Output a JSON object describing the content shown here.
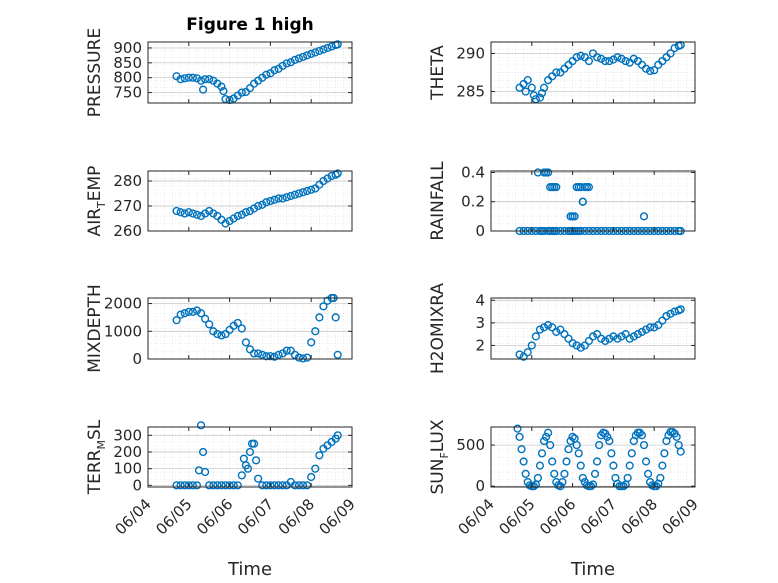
{
  "colors": {
    "marker": "#0072BD",
    "axis": "#262626",
    "grid": "#d9d9d9"
  },
  "chart_data": [
    {
      "type": "scatter",
      "title": "Figure 1 high",
      "ylabel": "PRESSURE",
      "ylabel_sub": "",
      "xlim": [
        0,
        5
      ],
      "ylim": [
        715,
        920
      ],
      "yticks": [
        750,
        800,
        850,
        900
      ],
      "yticklabels": [
        "750",
        "800",
        "850",
        "900"
      ],
      "x": [
        0.7,
        0.8,
        0.9,
        1.0,
        1.1,
        1.2,
        1.3,
        1.35,
        1.4,
        1.5,
        1.6,
        1.7,
        1.8,
        1.85,
        1.9,
        2.0,
        2.1,
        2.2,
        2.3,
        2.4,
        2.5,
        2.6,
        2.7,
        2.8,
        2.9,
        3.0,
        3.1,
        3.2,
        3.3,
        3.4,
        3.5,
        3.6,
        3.7,
        3.8,
        3.9,
        4.0,
        4.1,
        4.2,
        4.3,
        4.4,
        4.5,
        4.6,
        4.65
      ],
      "y": [
        805,
        795,
        798,
        800,
        800,
        798,
        790,
        760,
        795,
        795,
        790,
        780,
        770,
        755,
        728,
        725,
        730,
        740,
        750,
        752,
        765,
        780,
        790,
        800,
        810,
        815,
        825,
        830,
        840,
        848,
        852,
        860,
        865,
        870,
        875,
        880,
        885,
        890,
        895,
        900,
        905,
        910,
        912
      ]
    },
    {
      "type": "scatter",
      "title": "",
      "ylabel": "THETA",
      "ylabel_sub": "",
      "xlim": [
        0,
        5
      ],
      "ylim": [
        283.5,
        291.5
      ],
      "yticks": [
        285,
        290
      ],
      "yticklabels": [
        "285",
        "290"
      ],
      "x": [
        0.7,
        0.8,
        0.85,
        0.9,
        1.0,
        1.05,
        1.1,
        1.2,
        1.25,
        1.3,
        1.4,
        1.5,
        1.6,
        1.7,
        1.8,
        1.9,
        2.0,
        2.1,
        2.2,
        2.3,
        2.4,
        2.5,
        2.6,
        2.7,
        2.8,
        2.9,
        3.0,
        3.1,
        3.2,
        3.3,
        3.4,
        3.5,
        3.6,
        3.7,
        3.8,
        3.9,
        4.0,
        4.1,
        4.2,
        4.3,
        4.4,
        4.5,
        4.6,
        4.65
      ],
      "y": [
        285.5,
        286,
        285,
        286.5,
        285.5,
        284.5,
        284,
        284.2,
        284.8,
        285.5,
        286.5,
        287,
        287.5,
        287.5,
        288,
        288.5,
        289,
        289.5,
        289.7,
        289.5,
        289,
        290,
        289.5,
        289.3,
        289,
        289,
        289.2,
        289.5,
        289.3,
        289,
        288.8,
        289.3,
        289,
        288.5,
        288,
        287.7,
        287.8,
        288.5,
        289,
        289.5,
        290,
        290.7,
        291,
        291.1
      ]
    },
    {
      "type": "scatter",
      "title": "",
      "ylabel": "AIR",
      "ylabel_sub": "T",
      "ylabel_suffix": "EMP",
      "xlim": [
        0,
        5
      ],
      "ylim": [
        260,
        284
      ],
      "yticks": [
        260,
        270,
        280
      ],
      "yticklabels": [
        "260",
        "270",
        "280"
      ],
      "x": [
        0.7,
        0.8,
        0.9,
        1.0,
        1.1,
        1.2,
        1.3,
        1.4,
        1.5,
        1.6,
        1.7,
        1.8,
        1.9,
        2.0,
        2.1,
        2.2,
        2.3,
        2.4,
        2.5,
        2.6,
        2.7,
        2.8,
        2.9,
        3.0,
        3.1,
        3.2,
        3.3,
        3.4,
        3.5,
        3.6,
        3.7,
        3.8,
        3.9,
        4.0,
        4.1,
        4.2,
        4.3,
        4.4,
        4.5,
        4.6,
        4.65
      ],
      "y": [
        268,
        267.5,
        267,
        267.5,
        267,
        266.5,
        266,
        267,
        268,
        267,
        266,
        264.5,
        263,
        264,
        265,
        266,
        266.5,
        267.5,
        268,
        269,
        270,
        270.5,
        271.5,
        272,
        272.5,
        273,
        273,
        273.5,
        274,
        274.5,
        275,
        275.5,
        276,
        276.5,
        277,
        278.5,
        280,
        281,
        282,
        282.5,
        283
      ]
    },
    {
      "type": "scatter",
      "title": "",
      "ylabel": "RAINFALL",
      "ylabel_sub": "",
      "xlim": [
        0,
        5
      ],
      "ylim": [
        0,
        0.41
      ],
      "yticks": [
        0,
        0.2,
        0.4
      ],
      "yticklabels": [
        "0",
        "0.2",
        "0.4"
      ],
      "x": [
        0.7,
        0.8,
        0.9,
        1.0,
        1.1,
        1.2,
        1.25,
        1.3,
        1.4,
        1.45,
        1.5,
        1.55,
        1.6,
        1.7,
        1.8,
        1.9,
        1.95,
        2.0,
        2.05,
        2.1,
        2.15,
        2.2,
        2.3,
        2.4,
        2.5,
        2.6,
        2.7,
        2.8,
        2.9,
        3.0,
        3.1,
        3.2,
        3.3,
        3.4,
        3.5,
        3.6,
        3.7,
        3.8,
        3.9,
        4.0,
        4.1,
        4.2,
        4.3,
        4.4,
        4.5,
        4.6,
        4.65,
        1.15,
        1.3,
        1.35,
        1.4,
        1.45,
        1.5,
        1.55,
        1.6,
        1.95,
        2.0,
        2.05,
        2.1,
        2.15,
        2.2,
        2.25,
        2.25,
        2.3,
        2.35,
        2.4,
        3.75
      ],
      "y": [
        0,
        0,
        0,
        0,
        0,
        0,
        0,
        0,
        0,
        0,
        0,
        0,
        0,
        0,
        0,
        0,
        0,
        0,
        0,
        0,
        0,
        0,
        0,
        0,
        0,
        0,
        0,
        0,
        0,
        0,
        0,
        0,
        0,
        0,
        0,
        0,
        0,
        0,
        0,
        0,
        0,
        0,
        0,
        0,
        0,
        0,
        0,
        0.4,
        0.4,
        0.4,
        0.4,
        0.3,
        0.3,
        0.3,
        0.3,
        0.1,
        0.1,
        0.1,
        0.3,
        0.3,
        0.3,
        0.2,
        0.2,
        0.3,
        0.3,
        0.3,
        0.1
      ]
    },
    {
      "type": "scatter",
      "title": "",
      "ylabel": "MIXDEPTH",
      "ylabel_sub": "",
      "xlim": [
        0,
        5
      ],
      "ylim": [
        0,
        2200
      ],
      "yticks": [
        0,
        1000,
        2000
      ],
      "yticklabels": [
        "0",
        "1000",
        "2000"
      ],
      "x": [
        0.7,
        0.8,
        0.9,
        1.0,
        1.1,
        1.2,
        1.3,
        1.4,
        1.5,
        1.6,
        1.7,
        1.8,
        1.9,
        2.0,
        2.1,
        2.2,
        2.3,
        2.4,
        2.5,
        2.6,
        2.7,
        2.8,
        2.9,
        3.0,
        3.1,
        3.2,
        3.3,
        3.4,
        3.5,
        3.6,
        3.7,
        3.8,
        3.9,
        4.0,
        4.1,
        4.2,
        4.3,
        4.4,
        4.5,
        4.55,
        4.6,
        4.65
      ],
      "y": [
        1400,
        1600,
        1650,
        1700,
        1700,
        1750,
        1650,
        1450,
        1250,
        1000,
        900,
        850,
        900,
        1050,
        1200,
        1300,
        1100,
        600,
        350,
        200,
        200,
        150,
        100,
        100,
        80,
        150,
        200,
        300,
        300,
        150,
        50,
        20,
        50,
        600,
        1000,
        1500,
        1900,
        2100,
        2200,
        2200,
        1500,
        150
      ]
    },
    {
      "type": "scatter",
      "title": "",
      "ylabel": "H2OMIXRA",
      "ylabel_sub": "",
      "xlim": [
        0,
        5
      ],
      "ylim": [
        1.4,
        4.1
      ],
      "yticks": [
        2,
        3,
        4
      ],
      "yticklabels": [
        "2",
        "3",
        "4"
      ],
      "x": [
        0.7,
        0.8,
        0.9,
        1.0,
        1.1,
        1.2,
        1.3,
        1.4,
        1.5,
        1.6,
        1.7,
        1.8,
        1.9,
        2.0,
        2.1,
        2.2,
        2.3,
        2.4,
        2.5,
        2.6,
        2.7,
        2.8,
        2.9,
        3.0,
        3.1,
        3.2,
        3.3,
        3.4,
        3.5,
        3.6,
        3.7,
        3.8,
        3.9,
        4.0,
        4.1,
        4.2,
        4.3,
        4.4,
        4.5,
        4.6,
        4.65
      ],
      "y": [
        1.6,
        1.5,
        1.7,
        2.0,
        2.4,
        2.7,
        2.8,
        2.9,
        2.8,
        2.6,
        2.7,
        2.5,
        2.3,
        2.1,
        2.0,
        1.9,
        2.0,
        2.2,
        2.4,
        2.5,
        2.3,
        2.2,
        2.3,
        2.4,
        2.3,
        2.4,
        2.5,
        2.3,
        2.4,
        2.5,
        2.6,
        2.7,
        2.8,
        2.8,
        2.9,
        3.1,
        3.3,
        3.4,
        3.5,
        3.55,
        3.6
      ]
    },
    {
      "type": "scatter",
      "title": "",
      "ylabel": "TERR",
      "ylabel_sub": "M",
      "ylabel_suffix": "SL",
      "xlim": [
        0,
        5
      ],
      "ylim": [
        -10,
        350
      ],
      "yticks": [
        0,
        100,
        200,
        300
      ],
      "yticklabels": [
        "0",
        "100",
        "200",
        "300"
      ],
      "x": [
        0.7,
        0.8,
        0.9,
        1.0,
        1.1,
        1.2,
        1.25,
        1.3,
        1.35,
        1.4,
        1.5,
        1.6,
        1.7,
        1.8,
        1.9,
        2.0,
        2.1,
        2.2,
        2.3,
        2.35,
        2.4,
        2.45,
        2.5,
        2.55,
        2.6,
        2.65,
        2.7,
        2.8,
        2.9,
        3.0,
        3.1,
        3.2,
        3.3,
        3.4,
        3.5,
        3.6,
        3.7,
        3.8,
        3.9,
        4.0,
        4.1,
        4.2,
        4.3,
        4.4,
        4.5,
        4.6,
        4.65
      ],
      "y": [
        0,
        0,
        0,
        0,
        0,
        0,
        90,
        360,
        200,
        80,
        0,
        0,
        0,
        0,
        0,
        0,
        0,
        0,
        60,
        160,
        120,
        100,
        200,
        250,
        250,
        150,
        40,
        0,
        0,
        0,
        0,
        0,
        0,
        0,
        20,
        0,
        0,
        0,
        0,
        50,
        100,
        180,
        220,
        240,
        260,
        280,
        300
      ]
    },
    {
      "type": "scatter",
      "title": "",
      "ylabel": "SUN",
      "ylabel_sub": "F",
      "ylabel_suffix": "LUX",
      "xlim": [
        0,
        5
      ],
      "ylim": [
        -10,
        720
      ],
      "yticks": [
        0,
        500
      ],
      "yticklabels": [
        "0",
        "500"
      ],
      "x": [
        0.65,
        0.7,
        0.75,
        0.8,
        0.85,
        0.9,
        0.95,
        1.0,
        1.05,
        1.1,
        1.15,
        1.2,
        1.25,
        1.3,
        1.35,
        1.4,
        1.45,
        1.5,
        1.55,
        1.6,
        1.65,
        1.7,
        1.75,
        1.8,
        1.85,
        1.9,
        1.95,
        2.0,
        2.05,
        2.1,
        2.15,
        2.2,
        2.25,
        2.3,
        2.35,
        2.4,
        2.45,
        2.5,
        2.55,
        2.6,
        2.65,
        2.7,
        2.75,
        2.8,
        2.85,
        2.9,
        2.95,
        3.0,
        3.05,
        3.1,
        3.15,
        3.2,
        3.25,
        3.3,
        3.35,
        3.4,
        3.45,
        3.5,
        3.55,
        3.6,
        3.65,
        3.7,
        3.75,
        3.8,
        3.85,
        3.9,
        3.95,
        4.0,
        4.05,
        4.1,
        4.15,
        4.2,
        4.25,
        4.3,
        4.35,
        4.4,
        4.45,
        4.5,
        4.55,
        4.6,
        4.65
      ],
      "y": [
        700,
        600,
        450,
        300,
        150,
        50,
        10,
        0,
        0,
        20,
        100,
        250,
        400,
        550,
        600,
        650,
        500,
        300,
        150,
        50,
        10,
        0,
        50,
        150,
        300,
        450,
        550,
        600,
        580,
        500,
        400,
        250,
        100,
        50,
        10,
        0,
        0,
        20,
        150,
        300,
        500,
        620,
        650,
        640,
        600,
        550,
        400,
        250,
        100,
        30,
        0,
        0,
        0,
        20,
        100,
        250,
        400,
        550,
        620,
        650,
        650,
        620,
        500,
        300,
        150,
        50,
        10,
        0,
        0,
        30,
        100,
        250,
        400,
        550,
        620,
        660,
        660,
        640,
        600,
        500,
        420
      ]
    }
  ],
  "shared_x": {
    "ticks": [
      0,
      1,
      2,
      3,
      4,
      5
    ],
    "ticklabels": [
      "06/04",
      "06/05",
      "06/06",
      "06/07",
      "06/08",
      "06/09"
    ],
    "xlabel": "Time"
  }
}
